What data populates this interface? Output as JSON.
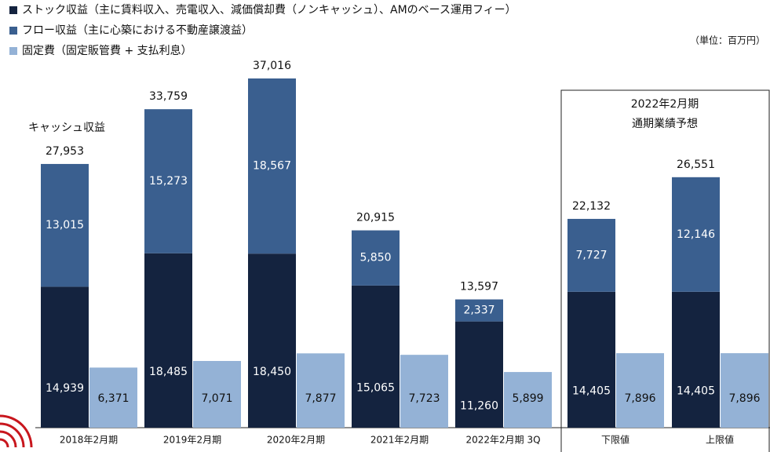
{
  "chart_data": {
    "type": "bar",
    "stacked": true,
    "unit_note": "（単位：百万円）",
    "annotations": [
      "キャッシュ収益"
    ],
    "forecast_box": {
      "title": "2022年2月期",
      "subtitle": "通期業績予想"
    },
    "categories": [
      "2018年2月期",
      "2019年2月期",
      "2020年2月期",
      "2021年2月期",
      "2022年2月期 3Q",
      "下限値",
      "上限値"
    ],
    "series": [
      {
        "name": "ストック収益（主に賃料収入、売電収入、減価償却費（ノンキャッシュ）、AMのベース運用フィー）",
        "color": "#14233f",
        "values": [
          14939,
          18485,
          18450,
          15065,
          11260,
          14405,
          14405
        ],
        "value_labels": [
          "14,939",
          "18,485",
          "18,450",
          "15,065",
          "11,260",
          "14,405",
          "14,405"
        ]
      },
      {
        "name": "フロー収益（主に心築における不動産譲渡益）",
        "color": "#3a5f8f",
        "values": [
          13015,
          15273,
          18567,
          5850,
          2337,
          7727,
          12146
        ],
        "value_labels": [
          "13,015",
          "15,273",
          "18,567",
          "5,850",
          "2,337",
          "7,727",
          "12,146"
        ]
      },
      {
        "name": "固定費（固定販管費 + 支払利息）",
        "color": "#94b2d6",
        "values": [
          6371,
          7071,
          7877,
          7723,
          5899,
          7896,
          7896
        ],
        "value_labels": [
          "6,371",
          "7,071",
          "7,877",
          "7,723",
          "5,899",
          "7,896",
          "7,896"
        ]
      }
    ],
    "totals": {
      "values": [
        27953,
        33759,
        37016,
        20915,
        13597,
        22132,
        26551
      ],
      "value_labels": [
        "27,953",
        "33,759",
        "37,016",
        "20,915",
        "13,597",
        "22,132",
        "26,551"
      ]
    }
  }
}
